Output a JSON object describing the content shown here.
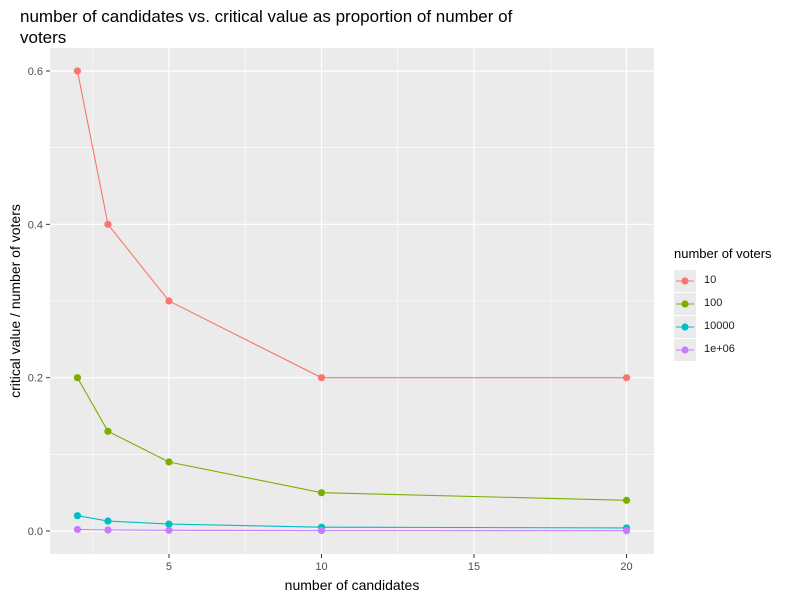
{
  "chart_data": {
    "type": "line",
    "title": "number of candidates vs. critical value as proportion of number of voters",
    "xlabel": "number of candidates",
    "ylabel": "critical value / number of voters",
    "xlim": [
      1.1,
      20.9
    ],
    "ylim": [
      -0.03,
      0.63
    ],
    "x_ticks": [
      5,
      10,
      15,
      20
    ],
    "y_ticks": [
      0.0,
      0.2,
      0.4,
      0.6
    ],
    "x_tick_labels": [
      "5",
      "10",
      "15",
      "20"
    ],
    "y_tick_labels": [
      "0.0",
      "0.2",
      "0.4",
      "0.6"
    ],
    "grid": true,
    "legend_title": "number of voters",
    "legend_position": "right",
    "x": [
      2,
      3,
      5,
      10,
      20
    ],
    "series": [
      {
        "name": "10",
        "color": "#F8766D",
        "values": [
          0.6,
          0.4,
          0.3,
          0.2,
          0.2
        ]
      },
      {
        "name": "100",
        "color": "#7CAE00",
        "values": [
          0.2,
          0.13,
          0.09,
          0.05,
          0.04
        ]
      },
      {
        "name": "10000",
        "color": "#00BFC4",
        "values": [
          0.02,
          0.013,
          0.009,
          0.005,
          0.004
        ]
      },
      {
        "name": "1e+06",
        "color": "#C77CFF",
        "values": [
          0.002,
          0.0013,
          0.0009,
          0.0005,
          0.0004
        ]
      }
    ]
  }
}
